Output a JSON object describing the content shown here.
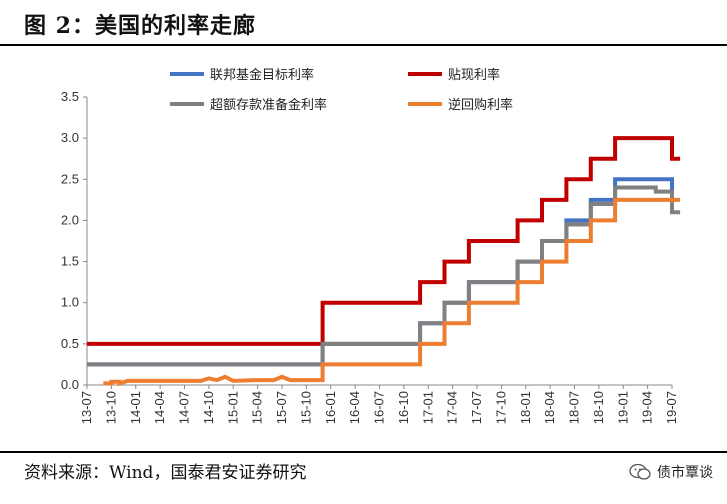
{
  "figure": {
    "title": "图 2：美国的利率走廊",
    "source": "资料来源：Wind，国泰君安证券研究",
    "watermark": "债市覃谈"
  },
  "chart_data": {
    "type": "line",
    "ylim": [
      0,
      3.5
    ],
    "y_ticks": [
      "0.0",
      "0.5",
      "1.0",
      "1.5",
      "2.0",
      "2.5",
      "3.0",
      "3.5"
    ],
    "x_ticks": [
      "13-07",
      "13-10",
      "14-01",
      "14-04",
      "14-07",
      "14-10",
      "15-01",
      "15-04",
      "15-07",
      "15-10",
      "16-01",
      "16-04",
      "16-07",
      "16-10",
      "17-01",
      "17-04",
      "17-07",
      "17-10",
      "18-01",
      "18-04",
      "18-07",
      "18-10",
      "19-01",
      "19-04",
      "19-07"
    ],
    "x_range": [
      "2013-07",
      "2019-07"
    ],
    "legend_position": "top",
    "series": [
      {
        "name": "联邦基金目标利率",
        "color": "#4472C4",
        "points": [
          [
            "2013-07",
            0.25
          ],
          [
            "2015-12",
            0.25
          ],
          [
            "2015-12",
            0.5
          ],
          [
            "2016-12",
            0.5
          ],
          [
            "2016-12",
            0.75
          ],
          [
            "2017-03",
            0.75
          ],
          [
            "2017-03",
            1.0
          ],
          [
            "2017-06",
            1.0
          ],
          [
            "2017-06",
            1.25
          ],
          [
            "2017-12",
            1.25
          ],
          [
            "2017-12",
            1.5
          ],
          [
            "2018-03",
            1.5
          ],
          [
            "2018-03",
            1.75
          ],
          [
            "2018-06",
            1.75
          ],
          [
            "2018-06",
            2.0
          ],
          [
            "2018-09",
            2.0
          ],
          [
            "2018-09",
            2.25
          ],
          [
            "2018-12",
            2.25
          ],
          [
            "2018-12",
            2.5
          ],
          [
            "2019-07",
            2.5
          ],
          [
            "2019-07",
            2.25
          ]
        ]
      },
      {
        "name": "贴现利率",
        "color": "#C00000",
        "points": [
          [
            "2013-07",
            0.5
          ],
          [
            "2015-12",
            0.5
          ],
          [
            "2015-12",
            1.0
          ],
          [
            "2016-12",
            1.0
          ],
          [
            "2016-12",
            1.25
          ],
          [
            "2017-03",
            1.25
          ],
          [
            "2017-03",
            1.5
          ],
          [
            "2017-06",
            1.5
          ],
          [
            "2017-06",
            1.75
          ],
          [
            "2017-12",
            1.75
          ],
          [
            "2017-12",
            2.0
          ],
          [
            "2018-03",
            2.0
          ],
          [
            "2018-03",
            2.25
          ],
          [
            "2018-06",
            2.25
          ],
          [
            "2018-06",
            2.5
          ],
          [
            "2018-09",
            2.5
          ],
          [
            "2018-09",
            2.75
          ],
          [
            "2018-12",
            2.75
          ],
          [
            "2018-12",
            3.0
          ],
          [
            "2019-07",
            3.0
          ],
          [
            "2019-07",
            2.75
          ],
          [
            "2019-08",
            2.75
          ]
        ]
      },
      {
        "name": "超额存款准备金利率",
        "color": "#808080",
        "points": [
          [
            "2013-07",
            0.25
          ],
          [
            "2015-12",
            0.25
          ],
          [
            "2015-12",
            0.5
          ],
          [
            "2016-12",
            0.5
          ],
          [
            "2016-12",
            0.75
          ],
          [
            "2017-03",
            0.75
          ],
          [
            "2017-03",
            1.0
          ],
          [
            "2017-06",
            1.0
          ],
          [
            "2017-06",
            1.25
          ],
          [
            "2017-12",
            1.25
          ],
          [
            "2017-12",
            1.5
          ],
          [
            "2018-03",
            1.5
          ],
          [
            "2018-03",
            1.75
          ],
          [
            "2018-06",
            1.75
          ],
          [
            "2018-06",
            1.95
          ],
          [
            "2018-09",
            1.95
          ],
          [
            "2018-09",
            2.2
          ],
          [
            "2018-12",
            2.2
          ],
          [
            "2018-12",
            2.4
          ],
          [
            "2019-05",
            2.4
          ],
          [
            "2019-05",
            2.35
          ],
          [
            "2019-07",
            2.35
          ],
          [
            "2019-07",
            2.1
          ],
          [
            "2019-08",
            2.1
          ]
        ]
      },
      {
        "name": "逆回购利率",
        "color": "#ED7D31",
        "points": [
          [
            "2013-09",
            0.02
          ],
          [
            "2013-10",
            0.02
          ],
          [
            "2013-10",
            0.04
          ],
          [
            "2013-11",
            0.04
          ],
          [
            "2013-11",
            0.02
          ],
          [
            "2013-12",
            0.05
          ],
          [
            "2014-03",
            0.05
          ],
          [
            "2014-06",
            0.05
          ],
          [
            "2014-09",
            0.05
          ],
          [
            "2014-10",
            0.08
          ],
          [
            "2014-11",
            0.06
          ],
          [
            "2014-12",
            0.1
          ],
          [
            "2015-01",
            0.05
          ],
          [
            "2015-04",
            0.06
          ],
          [
            "2015-06",
            0.06
          ],
          [
            "2015-07",
            0.1
          ],
          [
            "2015-08",
            0.06
          ],
          [
            "2015-12",
            0.06
          ],
          [
            "2015-12",
            0.25
          ],
          [
            "2016-12",
            0.25
          ],
          [
            "2016-12",
            0.5
          ],
          [
            "2017-03",
            0.5
          ],
          [
            "2017-03",
            0.75
          ],
          [
            "2017-06",
            0.75
          ],
          [
            "2017-06",
            1.0
          ],
          [
            "2017-12",
            1.0
          ],
          [
            "2017-12",
            1.25
          ],
          [
            "2018-03",
            1.25
          ],
          [
            "2018-03",
            1.5
          ],
          [
            "2018-06",
            1.5
          ],
          [
            "2018-06",
            1.75
          ],
          [
            "2018-09",
            1.75
          ],
          [
            "2018-09",
            2.0
          ],
          [
            "2018-12",
            2.0
          ],
          [
            "2018-12",
            2.25
          ],
          [
            "2019-08",
            2.25
          ]
        ]
      }
    ]
  }
}
